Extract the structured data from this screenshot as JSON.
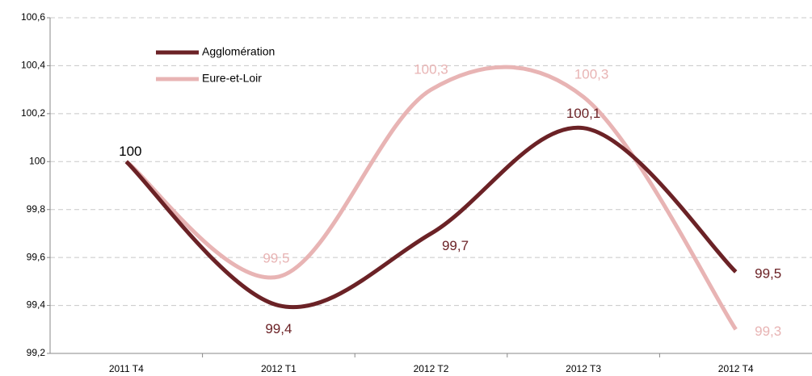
{
  "chart_data": {
    "type": "line",
    "categories": [
      "2011 T4",
      "2012 T1",
      "2012 T2",
      "2012 T3",
      "2012 T4"
    ],
    "series": [
      {
        "name": "Agglomération",
        "color": "#6b2226",
        "values": [
          100,
          99.4,
          99.7,
          100.14,
          99.54
        ],
        "value_labels": [
          "100",
          "99,4",
          "99,7",
          "100,1",
          "99,5"
        ]
      },
      {
        "name": "Eure-et-Loir",
        "color": "#e8b4b4",
        "values": [
          100,
          99.52,
          100.3,
          100.27,
          99.3
        ],
        "value_labels": [
          null,
          "99,5",
          "100,3",
          "100,3",
          "99,3"
        ]
      }
    ],
    "ylim": [
      99.2,
      100.6
    ],
    "yticks": [
      {
        "value": 99.2,
        "label": "99,2"
      },
      {
        "value": 99.4,
        "label": "99,4"
      },
      {
        "value": 99.6,
        "label": "99,6"
      },
      {
        "value": 99.8,
        "label": "99,8"
      },
      100,
      {
        "value": 100.2,
        "label": "100,2"
      },
      {
        "value": 100.4,
        "label": "100,4"
      },
      {
        "value": 100.6,
        "label": "100,6"
      }
    ],
    "grid": true,
    "legend": "top-left"
  }
}
